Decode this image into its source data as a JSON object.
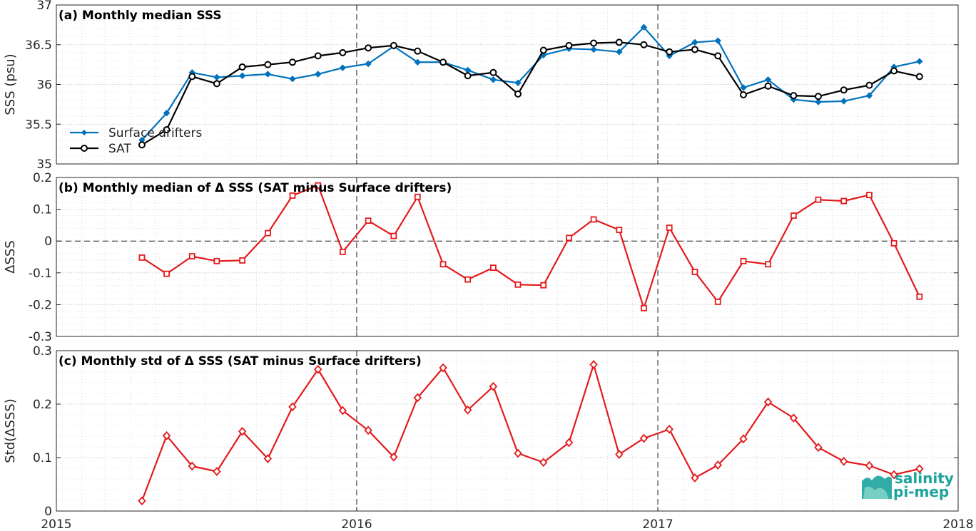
{
  "chart_data": [
    {
      "type": "line",
      "title": "(a) Monthly median SSS",
      "xlabel": "",
      "ylabel": "SSS (psu)",
      "xlim": [
        "2015-01-01",
        "2018-01-01"
      ],
      "x_ticks": [
        "2015",
        "2016",
        "2017",
        "2018"
      ],
      "ylim": [
        35,
        37
      ],
      "y_ticks": [
        "35",
        "35.5",
        "36",
        "36.5",
        "37"
      ],
      "grid": true,
      "legend_position": "bottom-left",
      "x": [
        "2015-04-15",
        "2015-05-15",
        "2015-06-15",
        "2015-07-15",
        "2015-08-15",
        "2015-09-15",
        "2015-10-15",
        "2015-11-15",
        "2015-12-15",
        "2016-01-15",
        "2016-02-15",
        "2016-03-15",
        "2016-04-15",
        "2016-05-15",
        "2016-06-15",
        "2016-07-15",
        "2016-08-15",
        "2016-09-15",
        "2016-10-15",
        "2016-11-15",
        "2016-12-15",
        "2017-01-15",
        "2017-02-15",
        "2017-03-15",
        "2017-04-15",
        "2017-05-15",
        "2017-06-15",
        "2017-07-15",
        "2017-08-15",
        "2017-09-15",
        "2017-10-15",
        "2017-11-15"
      ],
      "series": [
        {
          "name": "Surface drifters",
          "color": "#0072bd",
          "marker": "dot",
          "values": [
            35.3,
            35.64,
            36.15,
            36.09,
            36.11,
            36.13,
            36.07,
            36.13,
            36.21,
            36.26,
            36.48,
            36.28,
            36.28,
            36.18,
            36.06,
            36.02,
            36.37,
            36.45,
            36.44,
            36.41,
            36.72,
            36.36,
            36.53,
            36.55,
            35.96,
            36.06,
            35.81,
            35.78,
            35.79,
            35.86,
            36.22,
            36.29
          ]
        },
        {
          "name": "SAT",
          "color": "#000000",
          "marker": "circle",
          "values": [
            35.24,
            35.43,
            36.1,
            36.01,
            36.22,
            36.25,
            36.28,
            36.36,
            36.4,
            36.46,
            36.49,
            36.42,
            36.28,
            36.11,
            36.15,
            35.88,
            36.43,
            36.49,
            36.52,
            36.53,
            36.5,
            36.41,
            36.44,
            36.36,
            35.87,
            35.98,
            35.86,
            35.85,
            35.93,
            35.99,
            36.17,
            36.1
          ]
        }
      ]
    },
    {
      "type": "line",
      "title": "(b) Monthly median of Δ SSS (SAT minus Surface drifters)",
      "xlabel": "",
      "ylabel": "ΔSSS",
      "xlim": [
        "2015-01-01",
        "2018-01-01"
      ],
      "x_ticks": [
        "2015",
        "2016",
        "2017",
        "2018"
      ],
      "ylim": [
        -0.3,
        0.2
      ],
      "y_ticks": [
        "-0.3",
        "-0.2",
        "-0.1",
        "0",
        "0.1",
        "0.2"
      ],
      "grid": true,
      "x": [
        "2015-04-15",
        "2015-05-15",
        "2015-06-15",
        "2015-07-15",
        "2015-08-15",
        "2015-09-15",
        "2015-10-15",
        "2015-11-15",
        "2015-12-15",
        "2016-01-15",
        "2016-02-15",
        "2016-03-15",
        "2016-04-15",
        "2016-05-15",
        "2016-06-15",
        "2016-07-15",
        "2016-08-15",
        "2016-09-15",
        "2016-10-15",
        "2016-11-15",
        "2016-12-15",
        "2017-01-15",
        "2017-02-15",
        "2017-03-15",
        "2017-04-15",
        "2017-05-15",
        "2017-06-15",
        "2017-07-15",
        "2017-08-15",
        "2017-09-15",
        "2017-10-15",
        "2017-11-15"
      ],
      "series": [
        {
          "color": "#e31a1c",
          "marker": "square",
          "values": [
            -0.052,
            -0.103,
            -0.048,
            -0.063,
            -0.061,
            0.025,
            0.143,
            0.175,
            -0.034,
            0.064,
            0.016,
            0.139,
            -0.073,
            -0.121,
            -0.084,
            -0.137,
            -0.139,
            0.01,
            0.068,
            0.035,
            -0.211,
            0.042,
            -0.097,
            -0.191,
            -0.063,
            -0.073,
            0.08,
            0.13,
            0.126,
            0.145,
            -0.007,
            -0.175
          ]
        }
      ]
    },
    {
      "type": "line",
      "title": "(c) Monthly std of Δ SSS (SAT minus Surface drifters)",
      "xlabel": "",
      "ylabel": "Std(ΔSSS)",
      "xlim": [
        "2015-01-01",
        "2018-01-01"
      ],
      "x_ticks": [
        "2015",
        "2016",
        "2017",
        "2018"
      ],
      "ylim": [
        0,
        0.3
      ],
      "y_ticks": [
        "0",
        "0.1",
        "0.2",
        "0.3"
      ],
      "grid": true,
      "x": [
        "2015-04-15",
        "2015-05-15",
        "2015-06-15",
        "2015-07-15",
        "2015-08-15",
        "2015-09-15",
        "2015-10-15",
        "2015-11-15",
        "2015-12-15",
        "2016-01-15",
        "2016-02-15",
        "2016-03-15",
        "2016-04-15",
        "2016-05-15",
        "2016-06-15",
        "2016-07-15",
        "2016-08-15",
        "2016-09-15",
        "2016-10-15",
        "2016-11-15",
        "2016-12-15",
        "2017-01-15",
        "2017-02-15",
        "2017-03-15",
        "2017-04-15",
        "2017-05-15",
        "2017-06-15",
        "2017-07-15",
        "2017-08-15",
        "2017-09-15",
        "2017-10-15",
        "2017-11-15"
      ],
      "series": [
        {
          "color": "#e31a1c",
          "marker": "diamond",
          "values": [
            0.019,
            0.141,
            0.084,
            0.074,
            0.149,
            0.098,
            0.195,
            0.265,
            0.188,
            0.151,
            0.101,
            0.212,
            0.268,
            0.189,
            0.233,
            0.108,
            0.091,
            0.128,
            0.274,
            0.106,
            0.136,
            0.153,
            0.062,
            0.086,
            0.135,
            0.204,
            0.174,
            0.119,
            0.093,
            0.085,
            0.068,
            0.079
          ]
        }
      ]
    }
  ],
  "logo": {
    "line1": "salinity",
    "line2": "pi-mep",
    "color": "#1ba39c"
  }
}
